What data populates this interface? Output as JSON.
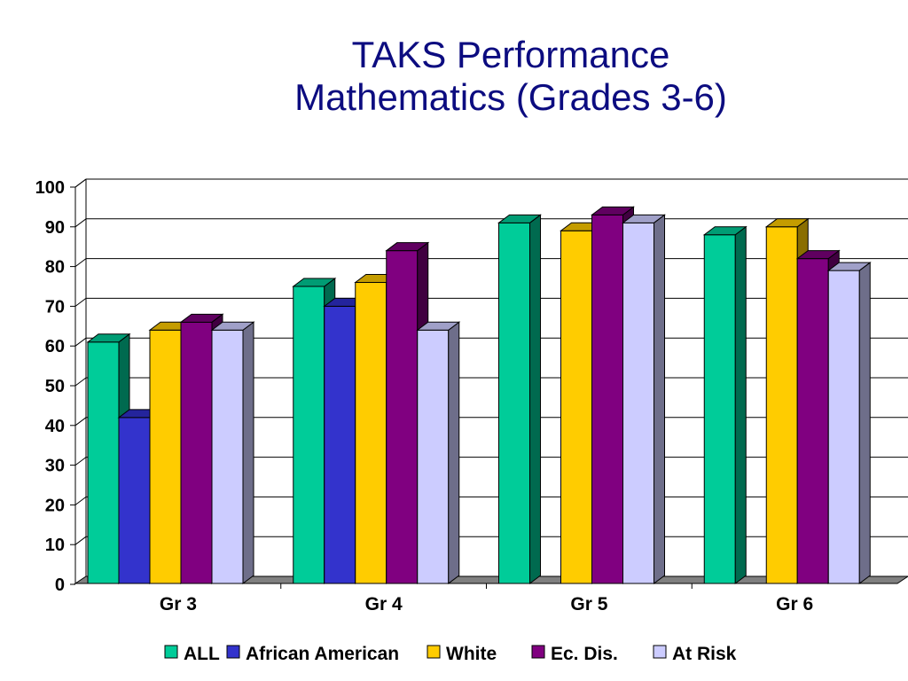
{
  "chart_data": {
    "type": "bar",
    "title": "TAKS Performance",
    "subtitle": "Mathematics (Grades 3-6)",
    "categories": [
      "Gr 3",
      "Gr 4",
      "Gr 5",
      "Gr 6"
    ],
    "series": [
      {
        "name": "ALL",
        "values": [
          61,
          75,
          91,
          88
        ]
      },
      {
        "name": "African American",
        "values": [
          42,
          70,
          null,
          null
        ]
      },
      {
        "name": "White",
        "values": [
          64,
          76,
          89,
          90
        ]
      },
      {
        "name": "Ec. Dis.",
        "values": [
          66,
          84,
          93,
          82
        ]
      },
      {
        "name": "At Risk",
        "values": [
          64,
          64,
          91,
          79
        ]
      }
    ],
    "ylim": [
      0,
      100
    ],
    "yticks": [
      "0",
      "10",
      "20",
      "30",
      "40",
      "50",
      "60",
      "70",
      "80",
      "90",
      "100"
    ],
    "grid": true,
    "legend_position": "bottom",
    "colors": [
      "#00cc99",
      "#3333cc",
      "#ffcc00",
      "#800080",
      "#ccccff"
    ],
    "side_colors": [
      "#006a4f",
      "#1a1a6a",
      "#8a6e00",
      "#400040",
      "#6e6e8a"
    ],
    "top_colors": [
      "#009c74",
      "#24249c",
      "#c49c00",
      "#600060",
      "#a0a0c8"
    ]
  }
}
